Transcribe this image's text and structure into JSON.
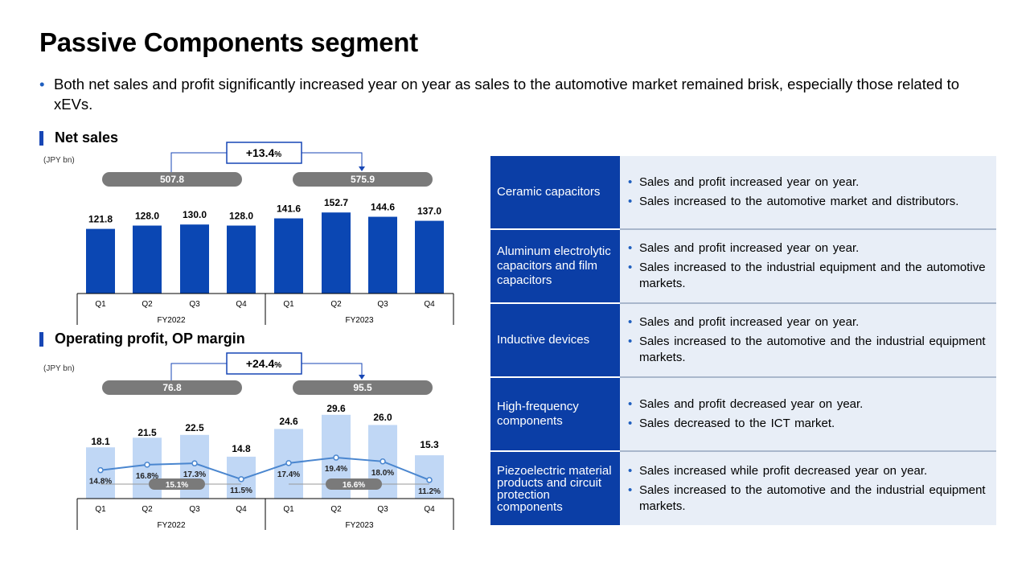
{
  "title": "Passive Components segment",
  "intro": "Both net sales and profit significantly increased year on year as sales to the automotive market remained brisk, especially those related to xEVs.",
  "chart_data": [
    {
      "type": "bar",
      "title": "Net sales",
      "unit": "(JPY bn)",
      "categories": [
        "Q1",
        "Q2",
        "Q3",
        "Q4",
        "Q1",
        "Q2",
        "Q3",
        "Q4"
      ],
      "groups": [
        "FY2022",
        "FY2023"
      ],
      "values": [
        121.8,
        128.0,
        130.0,
        128.0,
        141.6,
        152.7,
        144.6,
        137.0
      ],
      "value_labels": [
        "121.8",
        "128.0",
        "130.0",
        "128.0",
        "141.6",
        "152.7",
        "144.6",
        "137.0"
      ],
      "totals": [
        "507.8",
        "575.9"
      ],
      "change": "+13.4",
      "change_unit": "%",
      "bar_color": "#0b47b3"
    },
    {
      "type": "bar",
      "title": "Operating profit, OP margin",
      "unit": "(JPY bn)",
      "categories": [
        "Q1",
        "Q2",
        "Q3",
        "Q4",
        "Q1",
        "Q2",
        "Q3",
        "Q4"
      ],
      "groups": [
        "FY2022",
        "FY2023"
      ],
      "values": [
        18.1,
        21.5,
        22.5,
        14.8,
        24.6,
        29.6,
        26.0,
        15.3
      ],
      "value_labels": [
        "18.1",
        "21.5",
        "22.5",
        "14.8",
        "24.6",
        "29.6",
        "26.0",
        "15.3"
      ],
      "margin_values": [
        14.8,
        16.8,
        17.3,
        11.5,
        17.4,
        19.4,
        18.0,
        11.2
      ],
      "margin_labels": [
        "14.8%",
        "16.8%",
        "17.3%",
        "11.5%",
        "17.4%",
        "19.4%",
        "18.0%",
        "11.2%"
      ],
      "avg_margins": [
        "15.1%",
        "16.6%"
      ],
      "totals": [
        "76.8",
        "95.5"
      ],
      "change": "+24.4",
      "change_unit": "%",
      "bar_color": "#c0d7f5",
      "line_color": "#4a86cf"
    }
  ],
  "segments": [
    {
      "name": "Ceramic capacitors",
      "bullets": [
        "Sales and profit increased  year on year.",
        "Sales increased to the automotive market and distributors."
      ]
    },
    {
      "name": "Aluminum electrolytic capacitors and film capacitors",
      "bullets": [
        "Sales and profit increased  year on year.",
        "Sales increased to the industrial equipment  and the automotive  markets."
      ]
    },
    {
      "name": "Inductive devices",
      "bullets": [
        "Sales and profit increased  year on year.",
        "Sales increased to the automotive  and the industrial equipment  markets."
      ]
    },
    {
      "name": "High-frequency components",
      "bullets": [
        "Sales and profit decreased  year on year.",
        "Sales decreased  to the ICT market."
      ]
    },
    {
      "name": "Piezoelectric material products and circuit protection components",
      "bullets": [
        "Sales increased while  profit decreased  year on year.",
        "Sales increased to the automotive  and the industrial equipment  markets."
      ]
    }
  ]
}
